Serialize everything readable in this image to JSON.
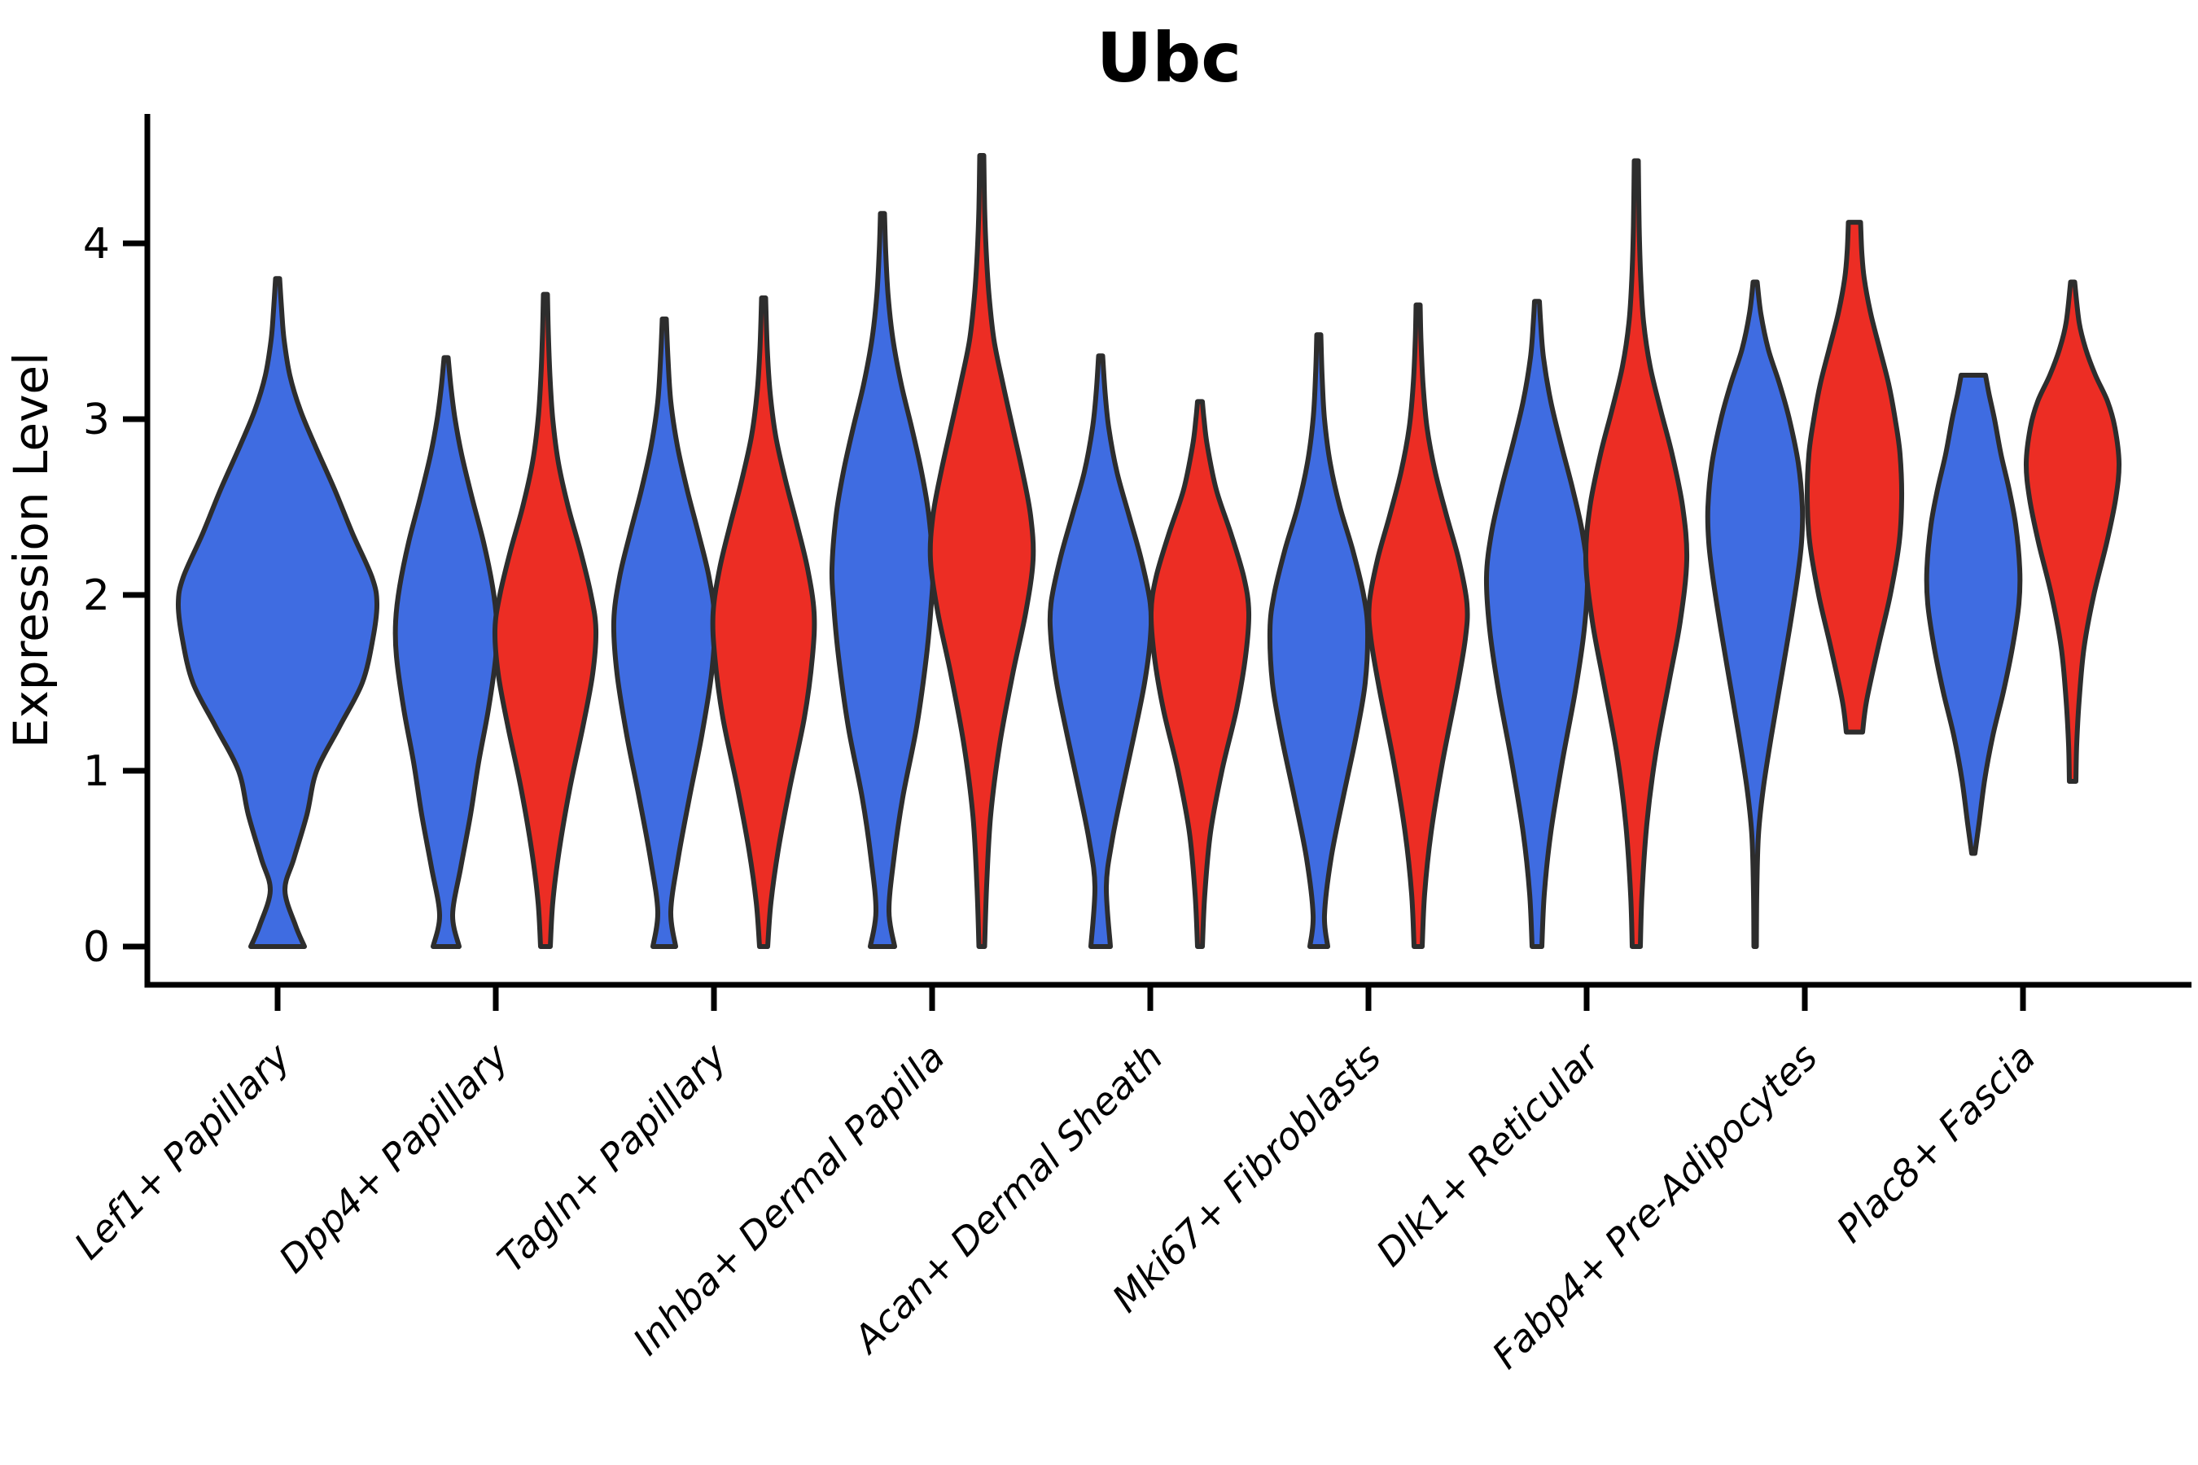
{
  "title": "Ubc",
  "y_axis": {
    "label": "Expression Level",
    "tick_labels": [
      "0",
      "1",
      "2",
      "3",
      "4"
    ],
    "tick_values": [
      0,
      1,
      2,
      3,
      4
    ]
  },
  "colors": {
    "blue": "#3f6ce1",
    "red": "#ec2d24",
    "outline": "#2d2d2d",
    "axis": "#000000"
  },
  "chart_data": {
    "type": "violin",
    "title": "Ubc",
    "xlabel": "",
    "ylabel": "Expression Level",
    "ylim": [
      -0.22,
      4.74
    ],
    "yticks": [
      0,
      1,
      2,
      3,
      4
    ],
    "grid": false,
    "legend": "none",
    "categories": [
      "Lef1+ Papillary",
      "Dpp4+ Papillary",
      "Tagln+ Papillary",
      "Inhba+ Dermal Papilla",
      "Acan+ Dermal Sheath",
      "Mki67+ Fibroblasts",
      "Dlk1+ Reticular",
      "Fabp4+ Pre-Adipocytes",
      "Plac8+ Fascia"
    ],
    "series": [
      {
        "name": "group_blue",
        "color": "#3f6ce1"
      },
      {
        "name": "group_red",
        "color": "#ec2d24"
      }
    ],
    "summary": [
      {
        "category": "Lef1+ Papillary",
        "group": "blue",
        "min": 0,
        "max": 3.8,
        "mode": 1.95
      },
      {
        "category": "Dpp4+ Papillary",
        "group": "blue",
        "min": 0,
        "max": 3.35,
        "mode": 1.75
      },
      {
        "category": "Dpp4+ Papillary",
        "group": "red",
        "min": 0,
        "max": 3.71,
        "mode": 1.8
      },
      {
        "category": "Tagln+ Papillary",
        "group": "blue",
        "min": 0,
        "max": 3.57,
        "mode": 1.85
      },
      {
        "category": "Tagln+ Papillary",
        "group": "red",
        "min": 0,
        "max": 3.69,
        "mode": 1.9
      },
      {
        "category": "Inhba+ Dermal Papilla",
        "group": "blue",
        "min": 0,
        "max": 4.17,
        "mode": 2.15
      },
      {
        "category": "Inhba+ Dermal Papilla",
        "group": "red",
        "min": 0,
        "max": 4.5,
        "mode": 2.2
      },
      {
        "category": "Acan+ Dermal Sheath",
        "group": "blue",
        "min": 0,
        "max": 3.36,
        "mode": 1.85
      },
      {
        "category": "Acan+ Dermal Sheath",
        "group": "red",
        "min": 0,
        "max": 3.1,
        "mode": 1.9
      },
      {
        "category": "Mki67+ Fibroblasts",
        "group": "blue",
        "min": 0,
        "max": 3.48,
        "mode": 1.85
      },
      {
        "category": "Mki67+ Fibroblasts",
        "group": "red",
        "min": 0,
        "max": 3.65,
        "mode": 1.85
      },
      {
        "category": "Dlk1+ Reticular",
        "group": "blue",
        "min": 0,
        "max": 3.67,
        "mode": 2.1
      },
      {
        "category": "Dlk1+ Reticular",
        "group": "red",
        "min": 0,
        "max": 4.47,
        "mode": 2.2
      },
      {
        "category": "Fabp4+ Pre-Adipocytes",
        "group": "blue",
        "min": 0,
        "max": 3.78,
        "mode": 2.45
      },
      {
        "category": "Fabp4+ Pre-Adipocytes",
        "group": "red",
        "min": 1.22,
        "max": 4.12,
        "mode": 2.65
      },
      {
        "category": "Plac8+ Fascia",
        "group": "blue",
        "min": 0.53,
        "max": 3.25,
        "mode": 2.05
      },
      {
        "category": "Plac8+ Fascia",
        "group": "red",
        "min": 0.94,
        "max": 3.78,
        "mode": 2.75
      }
    ]
  },
  "violins": [
    {
      "id": "lef1-papillary-blue",
      "cat": 0,
      "group": "blue",
      "single": true,
      "top": "point",
      "profile": [
        [
          0,
          33
        ],
        [
          0.12,
          22
        ],
        [
          0.32,
          9
        ],
        [
          0.5,
          20
        ],
        [
          0.75,
          36
        ],
        [
          1.0,
          48
        ],
        [
          1.25,
          76
        ],
        [
          1.5,
          104
        ],
        [
          1.75,
          117
        ],
        [
          1.95,
          122
        ],
        [
          2.1,
          116
        ],
        [
          2.35,
          92
        ],
        [
          2.6,
          70
        ],
        [
          2.85,
          46
        ],
        [
          3.05,
          28
        ],
        [
          3.25,
          15
        ],
        [
          3.45,
          8
        ],
        [
          3.62,
          5
        ],
        [
          3.8,
          2.5
        ]
      ]
    },
    {
      "id": "dpp4-papillary-blue",
      "cat": 1,
      "group": "blue",
      "single": false,
      "top": "point",
      "profile": [
        [
          0,
          16
        ],
        [
          0.18,
          8
        ],
        [
          0.45,
          18
        ],
        [
          0.75,
          30
        ],
        [
          1.05,
          40
        ],
        [
          1.35,
          52
        ],
        [
          1.65,
          61
        ],
        [
          1.85,
          62
        ],
        [
          2.05,
          57
        ],
        [
          2.3,
          46
        ],
        [
          2.55,
          32
        ],
        [
          2.8,
          19
        ],
        [
          3.0,
          11
        ],
        [
          3.18,
          6
        ],
        [
          3.35,
          2.5
        ]
      ]
    },
    {
      "id": "dpp4-papillary-red",
      "cat": 1,
      "group": "red",
      "single": false,
      "top": "point",
      "profile": [
        [
          0,
          6
        ],
        [
          0.25,
          9
        ],
        [
          0.55,
          17
        ],
        [
          0.9,
          30
        ],
        [
          1.25,
          46
        ],
        [
          1.55,
          58
        ],
        [
          1.8,
          62
        ],
        [
          2.0,
          56
        ],
        [
          2.25,
          43
        ],
        [
          2.5,
          28
        ],
        [
          2.75,
          16
        ],
        [
          3.0,
          9
        ],
        [
          3.25,
          5.5
        ],
        [
          3.5,
          3.5
        ],
        [
          3.71,
          2.5
        ]
      ]
    },
    {
      "id": "tagln-papillary-blue",
      "cat": 2,
      "group": "blue",
      "single": false,
      "top": "point",
      "profile": [
        [
          0,
          14
        ],
        [
          0.2,
          8
        ],
        [
          0.5,
          17
        ],
        [
          0.85,
          31
        ],
        [
          1.2,
          46
        ],
        [
          1.55,
          58
        ],
        [
          1.85,
          62
        ],
        [
          2.1,
          55
        ],
        [
          2.35,
          42
        ],
        [
          2.6,
          28
        ],
        [
          2.85,
          16
        ],
        [
          3.1,
          8
        ],
        [
          3.35,
          4.5
        ],
        [
          3.57,
          2.5
        ]
      ]
    },
    {
      "id": "tagln-papillary-red",
      "cat": 2,
      "group": "red",
      "single": false,
      "top": "point",
      "profile": [
        [
          0,
          5
        ],
        [
          0.25,
          9
        ],
        [
          0.55,
          18
        ],
        [
          0.9,
          32
        ],
        [
          1.3,
          50
        ],
        [
          1.65,
          60
        ],
        [
          1.9,
          62
        ],
        [
          2.15,
          54
        ],
        [
          2.4,
          41
        ],
        [
          2.65,
          27
        ],
        [
          2.9,
          15
        ],
        [
          3.15,
          8
        ],
        [
          3.4,
          4.5
        ],
        [
          3.69,
          2.5
        ]
      ]
    },
    {
      "id": "inhba-dermal-papilla-blue",
      "cat": 3,
      "group": "blue",
      "single": false,
      "top": "point",
      "profile": [
        [
          0,
          15
        ],
        [
          0.2,
          8
        ],
        [
          0.5,
          14
        ],
        [
          0.85,
          25
        ],
        [
          1.25,
          42
        ],
        [
          1.65,
          54
        ],
        [
          1.95,
          60
        ],
        [
          2.15,
          62
        ],
        [
          2.45,
          57
        ],
        [
          2.7,
          48
        ],
        [
          2.95,
          36
        ],
        [
          3.2,
          23
        ],
        [
          3.45,
          13
        ],
        [
          3.7,
          7
        ],
        [
          3.95,
          4
        ],
        [
          4.17,
          2.5
        ]
      ]
    },
    {
      "id": "inhba-dermal-papilla-red",
      "cat": 3,
      "group": "red",
      "single": false,
      "top": "point",
      "profile": [
        [
          0,
          3.5
        ],
        [
          0.35,
          6
        ],
        [
          0.75,
          11
        ],
        [
          1.15,
          22
        ],
        [
          1.55,
          38
        ],
        [
          1.9,
          54
        ],
        [
          2.2,
          63
        ],
        [
          2.45,
          60
        ],
        [
          2.7,
          50
        ],
        [
          2.95,
          38
        ],
        [
          3.2,
          26
        ],
        [
          3.45,
          15
        ],
        [
          3.7,
          9
        ],
        [
          3.95,
          5.5
        ],
        [
          4.2,
          3.5
        ],
        [
          4.5,
          2.5
        ]
      ]
    },
    {
      "id": "acan-dermal-sheath-blue",
      "cat": 4,
      "group": "blue",
      "single": false,
      "top": "point",
      "profile": [
        [
          0,
          12
        ],
        [
          0.34,
          7
        ],
        [
          0.6,
          14
        ],
        [
          0.9,
          27
        ],
        [
          1.2,
          41
        ],
        [
          1.5,
          54
        ],
        [
          1.75,
          61
        ],
        [
          1.95,
          61
        ],
        [
          2.2,
          50
        ],
        [
          2.45,
          35
        ],
        [
          2.7,
          20
        ],
        [
          2.95,
          10
        ],
        [
          3.15,
          5.5
        ],
        [
          3.36,
          2.5
        ]
      ]
    },
    {
      "id": "acan-dermal-sheath-red",
      "cat": 4,
      "group": "red",
      "single": false,
      "top": "point",
      "profile": [
        [
          0,
          3
        ],
        [
          0.3,
          6
        ],
        [
          0.65,
          13
        ],
        [
          1.0,
          27
        ],
        [
          1.35,
          45
        ],
        [
          1.65,
          56
        ],
        [
          1.9,
          60
        ],
        [
          2.1,
          54
        ],
        [
          2.35,
          38
        ],
        [
          2.6,
          20
        ],
        [
          2.85,
          9
        ],
        [
          3.0,
          5
        ],
        [
          3.1,
          3
        ]
      ]
    },
    {
      "id": "mki67-fibroblasts-blue",
      "cat": 5,
      "group": "blue",
      "single": false,
      "top": "point",
      "profile": [
        [
          0,
          11
        ],
        [
          0.18,
          7
        ],
        [
          0.5,
          15
        ],
        [
          0.85,
          30
        ],
        [
          1.2,
          46
        ],
        [
          1.5,
          57
        ],
        [
          1.8,
          60
        ],
        [
          2.0,
          55
        ],
        [
          2.25,
          42
        ],
        [
          2.5,
          26
        ],
        [
          2.75,
          14
        ],
        [
          3.0,
          7
        ],
        [
          3.25,
          4
        ],
        [
          3.48,
          2.5
        ]
      ]
    },
    {
      "id": "mki67-fibroblasts-red",
      "cat": 5,
      "group": "red",
      "single": false,
      "top": "point",
      "profile": [
        [
          0,
          5
        ],
        [
          0.3,
          8
        ],
        [
          0.65,
          16
        ],
        [
          1.05,
          30
        ],
        [
          1.45,
          47
        ],
        [
          1.75,
          58
        ],
        [
          1.95,
          60
        ],
        [
          2.2,
          50
        ],
        [
          2.45,
          35
        ],
        [
          2.7,
          21
        ],
        [
          2.95,
          11
        ],
        [
          3.2,
          6
        ],
        [
          3.45,
          3.5
        ],
        [
          3.65,
          2.5
        ]
      ]
    },
    {
      "id": "dlk1-reticular-blue",
      "cat": 6,
      "group": "blue",
      "single": false,
      "top": "point",
      "profile": [
        [
          0,
          6
        ],
        [
          0.3,
          9
        ],
        [
          0.65,
          17
        ],
        [
          1.05,
          31
        ],
        [
          1.45,
          47
        ],
        [
          1.8,
          58
        ],
        [
          2.1,
          62
        ],
        [
          2.35,
          56
        ],
        [
          2.6,
          44
        ],
        [
          2.85,
          30
        ],
        [
          3.1,
          17
        ],
        [
          3.35,
          8
        ],
        [
          3.55,
          4.5
        ],
        [
          3.67,
          3
        ]
      ]
    },
    {
      "id": "dlk1-reticular-red",
      "cat": 6,
      "group": "red",
      "single": false,
      "top": "point",
      "profile": [
        [
          0,
          5
        ],
        [
          0.3,
          7
        ],
        [
          0.7,
          13
        ],
        [
          1.1,
          24
        ],
        [
          1.5,
          40
        ],
        [
          1.85,
          54
        ],
        [
          2.2,
          62
        ],
        [
          2.5,
          57
        ],
        [
          2.8,
          44
        ],
        [
          3.05,
          30
        ],
        [
          3.3,
          17
        ],
        [
          3.55,
          9
        ],
        [
          3.8,
          5.5
        ],
        [
          4.1,
          3.5
        ],
        [
          4.47,
          2.5
        ]
      ]
    },
    {
      "id": "fabp4-pre-adipocytes-blue",
      "cat": 7,
      "group": "blue",
      "single": false,
      "top": "point",
      "profile": [
        [
          0,
          1.5
        ],
        [
          0.3,
          2
        ],
        [
          0.63,
          4
        ],
        [
          0.9,
          10
        ],
        [
          1.2,
          20
        ],
        [
          1.5,
          31
        ],
        [
          1.8,
          42
        ],
        [
          2.1,
          52
        ],
        [
          2.3,
          57
        ],
        [
          2.5,
          58
        ],
        [
          2.75,
          53
        ],
        [
          3.0,
          42
        ],
        [
          3.2,
          30
        ],
        [
          3.4,
          16
        ],
        [
          3.6,
          7
        ],
        [
          3.78,
          2.5
        ]
      ]
    },
    {
      "id": "fabp4-pre-adipocytes-red",
      "cat": 7,
      "group": "red",
      "single": false,
      "top": "flat",
      "profile": [
        [
          1.22,
          10
        ],
        [
          1.4,
          15
        ],
        [
          1.7,
          29
        ],
        [
          2.0,
          44
        ],
        [
          2.3,
          55
        ],
        [
          2.55,
          58
        ],
        [
          2.8,
          56
        ],
        [
          3.0,
          50
        ],
        [
          3.2,
          42
        ],
        [
          3.4,
          31
        ],
        [
          3.6,
          20
        ],
        [
          3.8,
          12
        ],
        [
          3.95,
          9
        ],
        [
          4.12,
          7.5
        ]
      ]
    },
    {
      "id": "plac8-fascia-blue",
      "cat": 8,
      "group": "blue",
      "single": false,
      "top": "flat",
      "profile": [
        [
          0.53,
          2
        ],
        [
          0.7,
          7
        ],
        [
          0.95,
          14
        ],
        [
          1.2,
          24
        ],
        [
          1.45,
          37
        ],
        [
          1.7,
          48
        ],
        [
          1.95,
          56
        ],
        [
          2.15,
          57
        ],
        [
          2.4,
          52
        ],
        [
          2.6,
          44
        ],
        [
          2.8,
          34
        ],
        [
          3.0,
          26
        ],
        [
          3.15,
          19
        ],
        [
          3.25,
          15
        ]
      ]
    },
    {
      "id": "plac8-fascia-red",
      "cat": 8,
      "group": "red",
      "single": false,
      "top": "point",
      "profile": [
        [
          0.94,
          4
        ],
        [
          1.15,
          5
        ],
        [
          1.4,
          8
        ],
        [
          1.7,
          14
        ],
        [
          2.0,
          26
        ],
        [
          2.3,
          42
        ],
        [
          2.55,
          53
        ],
        [
          2.75,
          57
        ],
        [
          2.95,
          52
        ],
        [
          3.1,
          43
        ],
        [
          3.25,
          28
        ],
        [
          3.4,
          16
        ],
        [
          3.55,
          8
        ],
        [
          3.78,
          2.5
        ]
      ]
    }
  ]
}
